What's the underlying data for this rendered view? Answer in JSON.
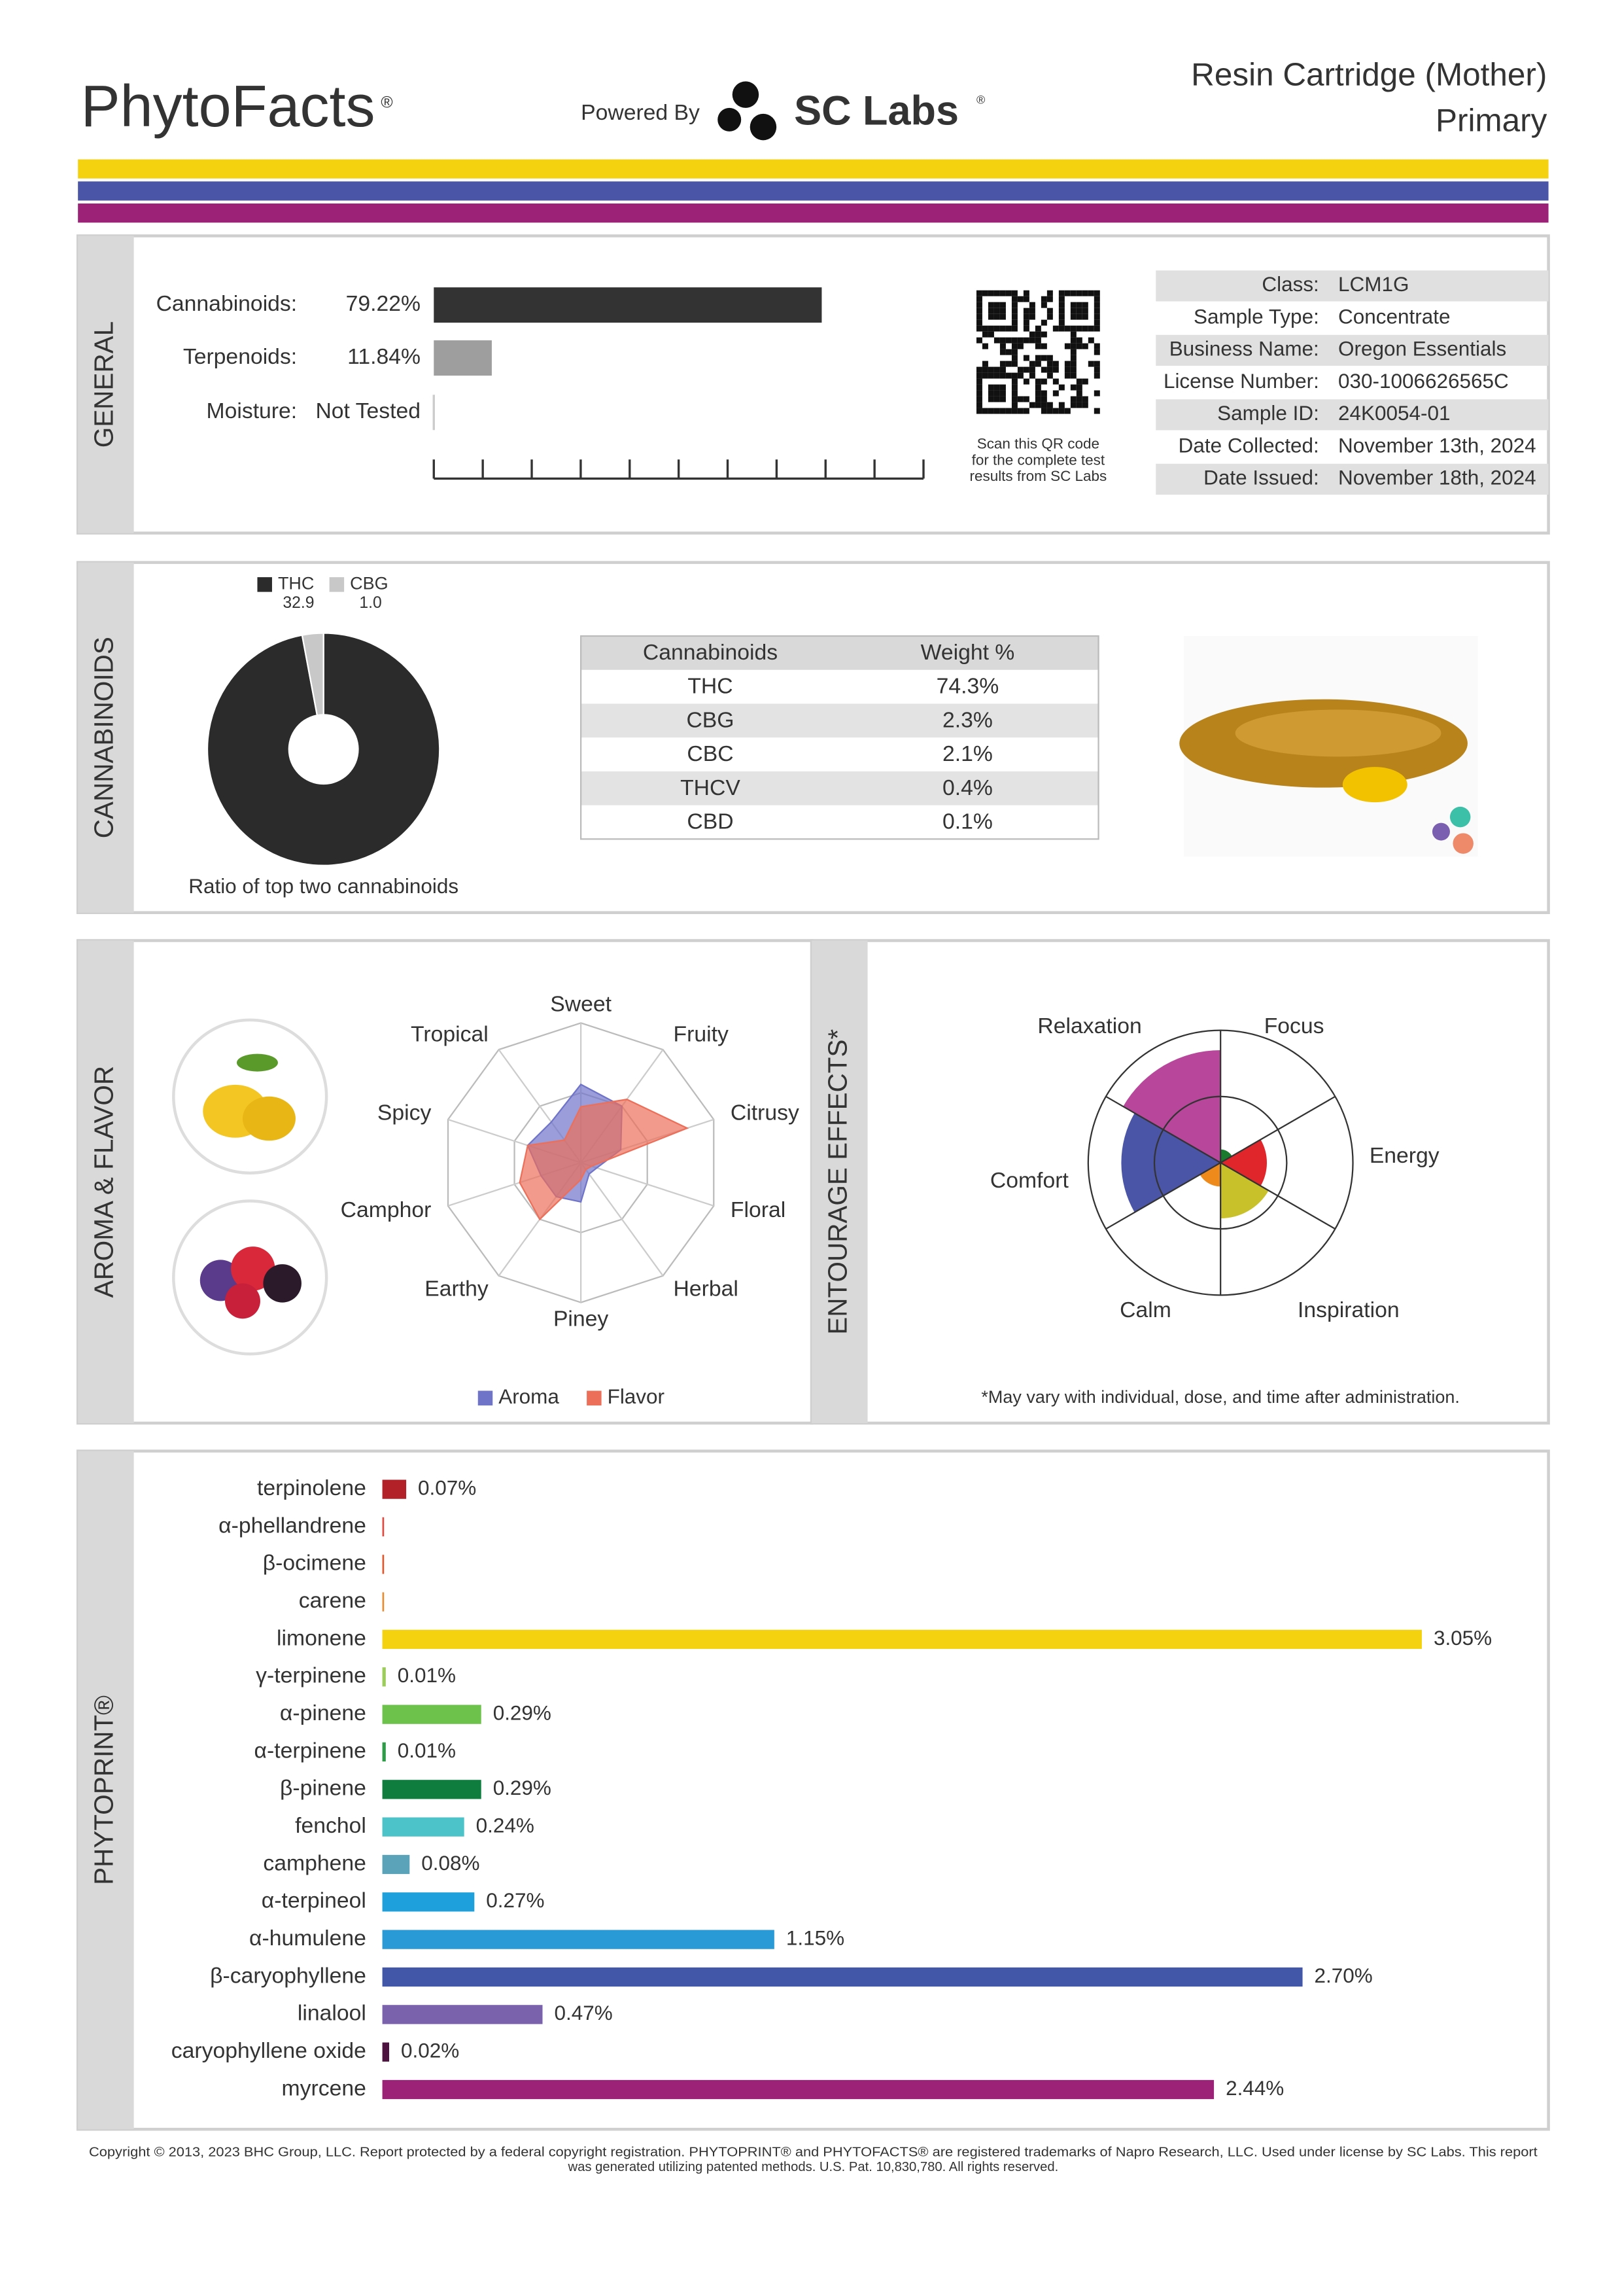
{
  "header": {
    "brand": "PhytoFacts",
    "brand_mark": "®",
    "powered_by": "Powered By",
    "lab": "SC Labs",
    "lab_mark": "®",
    "product": "Resin Cartridge (Mother)",
    "sample_label": "Primary"
  },
  "qr_caption": [
    "Scan this QR code",
    "for the complete test",
    "results from SC Labs"
  ],
  "info_table": {
    "rows": [
      [
        "Class:",
        "LCM1G"
      ],
      [
        "Sample Type:",
        "Concentrate"
      ],
      [
        "Business Name:",
        "Oregon Essentials"
      ],
      [
        "License Number:",
        "030-1006626565C"
      ],
      [
        "Sample ID:",
        "24K0054-01"
      ],
      [
        "Date Collected:",
        "November 13th, 2024"
      ],
      [
        "Date Issued:",
        "November 18th, 2024"
      ]
    ]
  },
  "cannabinoid_table": {
    "columns": [
      "Cannabinoids",
      "Weight %"
    ],
    "rows": [
      [
        "THC",
        "74.3%"
      ],
      [
        "CBG",
        "2.3%"
      ],
      [
        "CBC",
        "2.1%"
      ],
      [
        "THCV",
        "0.4%"
      ],
      [
        "CBD",
        "0.1%"
      ]
    ]
  },
  "chart_data": [
    {
      "type": "bar",
      "orientation": "horizontal",
      "title": "GENERAL",
      "categories": [
        "Cannabinoids:",
        "Terpenoids:",
        "Moisture:"
      ],
      "values": [
        79.22,
        11.84,
        null
      ],
      "value_labels": [
        "79.22%",
        "11.84%",
        "Not Tested"
      ],
      "colors": [
        "#333333",
        "#9e9e9e",
        "#cccccc"
      ],
      "xlim": [
        0,
        100
      ],
      "xticks": [
        0,
        10,
        20,
        30,
        40,
        50,
        60,
        70,
        80,
        90,
        100
      ]
    },
    {
      "type": "pie",
      "title": "CANNABINOIDS",
      "categories": [
        "THC",
        "CBG"
      ],
      "values": [
        32.9,
        1.0
      ],
      "value_labels": [
        "32.9",
        "1.0"
      ],
      "colors": [
        "#2b2b2b",
        "#c8c8c8"
      ],
      "caption": "Ratio of top two cannabinoids"
    },
    {
      "type": "radar",
      "title": "AROMA & FLAVOR",
      "categories": [
        "Sweet",
        "Fruity",
        "Citrusy",
        "Floral",
        "Herbal",
        "Piney",
        "Earthy",
        "Camphor",
        "Spicy",
        "Tropical"
      ],
      "series": [
        {
          "name": "Aroma",
          "color": "#6f74c9",
          "values": [
            2.8,
            2.5,
            1.5,
            0.6,
            0.5,
            1.4,
            1.5,
            1.5,
            2.0,
            1.8
          ]
        },
        {
          "name": "Flavor",
          "color": "#ec6f5a",
          "values": [
            2.0,
            2.8,
            4.0,
            0.4,
            0.3,
            0.6,
            2.5,
            2.3,
            2.0,
            1.0
          ]
        }
      ],
      "rlim": [
        0,
        5
      ],
      "rticks": [
        2.5,
        5
      ]
    },
    {
      "type": "polar",
      "title": "ENTOURAGE EFFECTS*",
      "categories": [
        "Focus",
        "Energy",
        "Inspiration",
        "Calm",
        "Comfort",
        "Relaxation"
      ],
      "values": [
        10,
        35,
        42,
        18,
        75,
        85
      ],
      "colors": [
        "#1a7a2e",
        "#e0262b",
        "#c8c12a",
        "#ee8a1c",
        "#4a55a8",
        "#b8479b"
      ],
      "rlim": [
        0,
        100
      ],
      "rticks": [
        50,
        100
      ],
      "note": "*May vary with individual, dose, and time after administration."
    },
    {
      "type": "bar",
      "orientation": "horizontal",
      "title": "PHYTOPRINT®",
      "categories": [
        "terpinolene",
        "α-phellandrene",
        "β-ocimene",
        "carene",
        "limonene",
        "γ-terpinene",
        "α-pinene",
        "α-terpinene",
        "β-pinene",
        "fenchol",
        "camphene",
        "α-terpineol",
        "α-humulene",
        "β-caryophyllene",
        "linalool",
        "caryophyllene oxide",
        "myrcene"
      ],
      "values": [
        0.07,
        0.005,
        0.005,
        0.005,
        3.05,
        0.01,
        0.29,
        0.01,
        0.29,
        0.24,
        0.08,
        0.27,
        1.15,
        2.7,
        0.47,
        0.02,
        2.44
      ],
      "value_labels": [
        "0.07%",
        null,
        null,
        null,
        "3.05%",
        "0.01%",
        "0.29%",
        "0.01%",
        "0.29%",
        "0.24%",
        "0.08%",
        "0.27%",
        "1.15%",
        "2.70%",
        "0.47%",
        "0.02%",
        "2.44%"
      ],
      "colors": [
        "#b22028",
        "#e8463c",
        "#e4552a",
        "#e88a2e",
        "#f5d20f",
        "#9ccc5a",
        "#6cc24a",
        "#2e9b48",
        "#0e7d3e",
        "#4cc3c8",
        "#5aa3b8",
        "#1ea0dc",
        "#2a9ad6",
        "#4257a8",
        "#7b62ad",
        "#4d1240",
        "#9b2276"
      ],
      "label_colors": [
        "#a51d24",
        "#d8342c",
        "#d73f1c",
        "#d4761c",
        "#9a8416",
        "#6b9a2e",
        "#2f8f2f",
        "#1f7f3a",
        "#0e6d36",
        "#1a8f95",
        "#2e7f93",
        "#1a7fb0",
        "#1f78b0",
        "#3a4b9a",
        "#6a51a0",
        "#3e0f35",
        "#8a1d69"
      ],
      "xlim": [
        0,
        3.4
      ]
    }
  ],
  "footer": [
    "Copyright © 2013, 2023 BHC Group, LLC. Report protected by a federal copyright registration. PHYTOPRINT® and PHYTOFACTS® are registered trademarks of Napro Research, LLC. Used under license by SC Labs. This report",
    "was generated utilizing patented methods. U.S. Pat. 10,830,780. All rights reserved."
  ]
}
